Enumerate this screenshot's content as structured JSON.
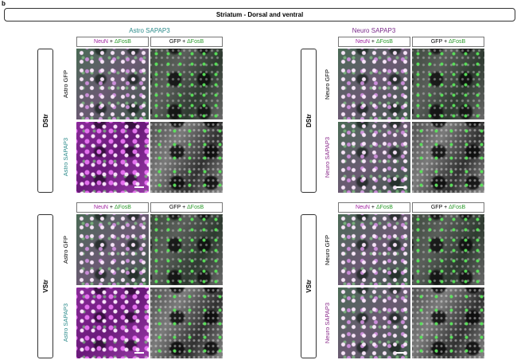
{
  "panel_label": "b",
  "title": "Striatum - Dorsal and ventral",
  "groups": [
    "Astro SAPAP3",
    "Neuro SAPAP3"
  ],
  "blocks": [
    {
      "region": "DStr",
      "columns": [
        [
          "NeuN",
          "+",
          "ΔFosB"
        ],
        [
          "GFP",
          "+",
          "ΔFosB"
        ]
      ],
      "rows": [
        "Astro GFP",
        "Astro SAPAP3"
      ]
    },
    {
      "region": "DStr",
      "columns": [
        [
          "NeuN",
          "+",
          "ΔFosB"
        ],
        [
          "GFP",
          "+",
          "ΔFosB"
        ]
      ],
      "rows": [
        "Neuro GFP",
        "Neuro SAPAP3"
      ]
    },
    {
      "region": "VStr",
      "columns": [
        [
          "NeuN",
          "+",
          "ΔFosB"
        ],
        [
          "GFP",
          "+",
          "ΔFosB"
        ]
      ],
      "rows": [
        "Astro GFP",
        "Astro SAPAP3"
      ]
    },
    {
      "region": "VStr",
      "columns": [
        [
          "NeuN",
          "+",
          "ΔFosB"
        ],
        [
          "GFP",
          "+",
          "ΔFosB"
        ]
      ],
      "rows": [
        "Neuro GFP",
        "Neuro SAPAP3"
      ]
    }
  ]
}
